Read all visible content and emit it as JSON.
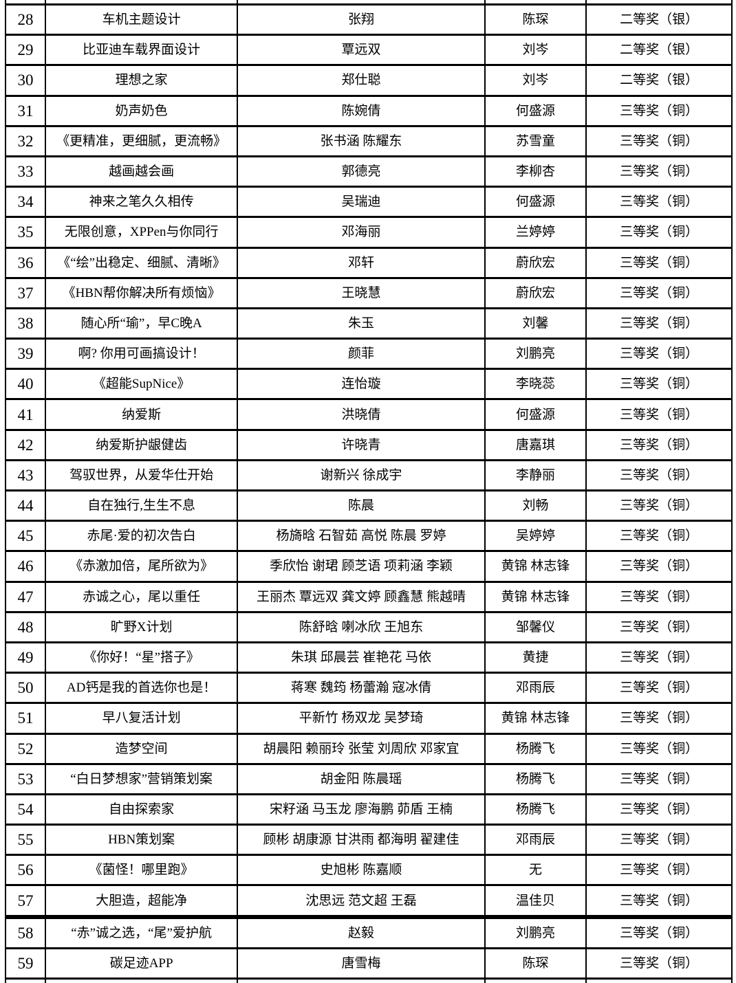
{
  "table": {
    "award_gold_silver_color": "#000000",
    "text_color": "#000000",
    "border_color": "#000000",
    "rows": [
      {
        "no": "28",
        "title": "车机主题设计",
        "authors": "张翔",
        "advisor": "陈琛",
        "award": "二等奖（银）"
      },
      {
        "no": "29",
        "title": "比亚迪车载界面设计",
        "authors": "覃远双",
        "advisor": "刘岑",
        "award": "二等奖（银）"
      },
      {
        "no": "30",
        "title": "理想之家",
        "authors": "郑仕聪",
        "advisor": "刘岑",
        "award": "二等奖（银）"
      },
      {
        "no": "31",
        "title": "奶声奶色",
        "authors": "陈婉倩",
        "advisor": "何盛源",
        "award": "三等奖（铜）"
      },
      {
        "no": "32",
        "title": "《更精准，更细腻，更流畅》",
        "authors": "张书涵 陈耀东",
        "advisor": "苏雪童",
        "award": "三等奖（铜）"
      },
      {
        "no": "33",
        "title": "越画越会画",
        "authors": "郭德亮",
        "advisor": "李柳杏",
        "award": "三等奖（铜）"
      },
      {
        "no": "34",
        "title": "神来之笔久久相传",
        "authors": "吴瑞迪",
        "advisor": "何盛源",
        "award": "三等奖（铜）"
      },
      {
        "no": "35",
        "title": "无限创意，XPPen与你同行",
        "authors": "邓海丽",
        "advisor": "兰婷婷",
        "award": "三等奖（铜）"
      },
      {
        "no": "36",
        "title": "《“绘”出稳定、细腻、清晰》",
        "authors": "邓轩",
        "advisor": "蔚欣宏",
        "award": "三等奖（铜）"
      },
      {
        "no": "37",
        "title": "《HBN帮你解决所有烦恼》",
        "authors": "王晓慧",
        "advisor": "蔚欣宏",
        "award": "三等奖（铜）"
      },
      {
        "no": "38",
        "title": "随心所“瑜”，早C晚A",
        "authors": "朱玉",
        "advisor": "刘馨",
        "award": "三等奖（铜）"
      },
      {
        "no": "39",
        "title": "啊? 你用可画搞设计！",
        "authors": "颜菲",
        "advisor": "刘鹏亮",
        "award": "三等奖（铜）"
      },
      {
        "no": "40",
        "title": "《超能SupNice》",
        "authors": "连怡璇",
        "advisor": "李晓蕊",
        "award": "三等奖（铜）"
      },
      {
        "no": "41",
        "title": "纳爱斯",
        "authors": "洪晓倩",
        "advisor": "何盛源",
        "award": "三等奖（铜）"
      },
      {
        "no": "42",
        "title": "纳爱斯护龈健齿",
        "authors": "许晓青",
        "advisor": "唐嘉琪",
        "award": "三等奖（铜）"
      },
      {
        "no": "43",
        "title": "驾驭世界，从爱华仕开始",
        "authors": "谢新兴 徐成宇",
        "advisor": "李静丽",
        "award": "三等奖（铜）"
      },
      {
        "no": "44",
        "title": "自在独行,生生不息",
        "authors": "陈晨",
        "advisor": "刘畅",
        "award": "三等奖（铜）"
      },
      {
        "no": "45",
        "title": "赤尾·爱的初次告白",
        "authors": "杨旖晗 石智茹 高悦 陈晨 罗婷",
        "advisor": "吴婷婷",
        "award": "三等奖（铜）"
      },
      {
        "no": "46",
        "title": "《赤激加倍，尾所欲为》",
        "authors": "季欣怡 谢珺 顾芝语 项莉涵 李颖",
        "advisor": "黄锦 林志锋",
        "award": "三等奖（铜）"
      },
      {
        "no": "47",
        "title": "赤诚之心，尾以重任",
        "authors": "王丽杰 覃远双 龚文婷 顾鑫慧 熊越晴",
        "advisor": "黄锦 林志锋",
        "award": "三等奖（铜）"
      },
      {
        "no": "48",
        "title": "旷野X计划",
        "authors": "陈舒晗 喇冰欣 王旭东",
        "advisor": "邹馨仪",
        "award": "三等奖（铜）"
      },
      {
        "no": "49",
        "title": "《你好！“星”搭子》",
        "authors": "朱琪 邱晨芸 崔艳花 马依",
        "advisor": "黄捷",
        "award": "三等奖（铜）"
      },
      {
        "no": "50",
        "title": "AD钙是我的首选你也是！",
        "authors": "蒋寒 魏筠 杨蕾瀚 寇冰倩",
        "advisor": "邓雨辰",
        "award": "三等奖（铜）"
      },
      {
        "no": "51",
        "title": "早八复活计划",
        "authors": "平新竹 杨双龙 吴梦琦",
        "advisor": "黄锦 林志锋",
        "award": "三等奖（铜）"
      },
      {
        "no": "52",
        "title": "造梦空间",
        "authors": "胡晨阳 赖丽玲 张莹 刘周欣 邓家宜",
        "advisor": "杨腾飞",
        "award": "三等奖（铜）"
      },
      {
        "no": "53",
        "title": "“白日梦想家”营销策划案",
        "authors": "胡金阳 陈晨瑶",
        "advisor": "杨腾飞",
        "award": "三等奖（铜）"
      },
      {
        "no": "54",
        "title": "自由探索家",
        "authors": "宋籽涵 马玉龙 廖海鹏 茆盾 王楠",
        "advisor": "杨腾飞",
        "award": "三等奖（铜）"
      },
      {
        "no": "55",
        "title": "HBN策划案",
        "authors": "顾彬 胡康源 甘洪雨 都海明 翟建佳",
        "advisor": "邓雨辰",
        "award": "三等奖（铜）"
      },
      {
        "no": "56",
        "title": "《菌怪！哪里跑》",
        "authors": "史旭彬 陈嘉顺",
        "advisor": "无",
        "award": "三等奖（铜）"
      },
      {
        "no": "57",
        "title": "大胆造，超能净",
        "authors": "沈思远 范文超 王磊",
        "advisor": "温佳贝",
        "award": "三等奖（铜）",
        "thick_bottom": true
      },
      {
        "no": "58",
        "title": "“赤”诚之选，“尾”爱护航",
        "authors": "赵毅",
        "advisor": "刘鹏亮",
        "award": "三等奖（铜）"
      },
      {
        "no": "59",
        "title": "碳足迹APP",
        "authors": "唐雪梅",
        "advisor": "陈琛",
        "award": "三等奖（铜）"
      }
    ]
  }
}
